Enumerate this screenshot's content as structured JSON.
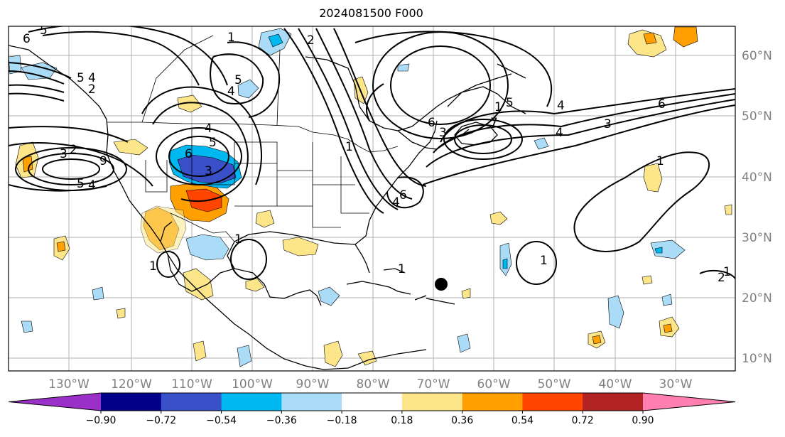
{
  "title": "2024081500 F000",
  "map": {
    "lon_ticks": [
      "130°W",
      "120°W",
      "110°W",
      "100°W",
      "90°W",
      "80°W",
      "70°W",
      "60°W",
      "50°W",
      "40°W",
      "30°W"
    ],
    "lat_ticks": [
      "60°N",
      "50°N",
      "40°N",
      "30°N",
      "20°N",
      "10°N"
    ],
    "contour_labels": [
      "6",
      "5",
      "1",
      "2",
      "5",
      "4",
      "2",
      "4",
      "5",
      "4",
      "3",
      "2",
      "3",
      "5",
      "4",
      "9",
      "6",
      "5",
      "3",
      "4",
      "1",
      "2",
      "4",
      "6",
      "7",
      "1",
      "5",
      "6",
      "3",
      "4",
      "6",
      "1",
      "1",
      "1",
      "1",
      "1",
      "1"
    ],
    "marker": "filled-circle"
  },
  "colorbar": {
    "ticks": [
      "−0.90",
      "−0.72",
      "−0.54",
      "−0.36",
      "−0.18",
      "0.18",
      "0.36",
      "0.54",
      "0.72",
      "0.90"
    ],
    "colors": [
      "#9b30c8",
      "#00008b",
      "#3a50c8",
      "#00b8f0",
      "#aadcf8",
      "#ffffff",
      "#fde68a",
      "#ffa000",
      "#ff4500",
      "#b22222",
      "#ff80b0"
    ]
  }
}
